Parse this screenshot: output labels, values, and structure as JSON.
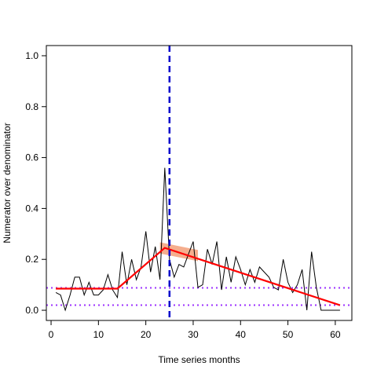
{
  "chart_data": {
    "type": "line",
    "title": "",
    "xlabel": "Time series months",
    "ylabel": "Numerator over denominator",
    "xlim": [
      -1,
      63.5
    ],
    "ylim": [
      -0.04,
      1.04
    ],
    "xticks": [
      0,
      10,
      20,
      30,
      40,
      50,
      60
    ],
    "yticks": [
      0.0,
      0.2,
      0.4,
      0.6,
      0.8,
      1.0
    ],
    "xtick_labels": [
      "0",
      "10",
      "20",
      "30",
      "40",
      "50",
      "60"
    ],
    "ytick_labels": [
      "0.0",
      "0.2",
      "0.4",
      "0.6",
      "0.8",
      "1.0"
    ],
    "grid": false,
    "legend": "none",
    "series": [
      {
        "kind": "observed",
        "color": "#000000",
        "x": [
          1,
          2,
          3,
          4,
          5,
          6,
          7,
          8,
          9,
          10,
          11,
          12,
          13,
          14,
          15,
          16,
          17,
          18,
          19,
          20,
          21,
          22,
          23,
          24,
          25,
          26,
          27,
          28,
          29,
          30,
          31,
          32,
          33,
          34,
          35,
          36,
          37,
          38,
          39,
          40,
          41,
          42,
          43,
          44,
          45,
          46,
          47,
          48,
          49,
          50,
          51,
          52,
          53,
          54,
          55,
          56,
          57,
          58,
          59,
          60,
          61
        ],
        "y": [
          0.07,
          0.06,
          0.0,
          0.06,
          0.13,
          0.13,
          0.06,
          0.11,
          0.06,
          0.06,
          0.08,
          0.14,
          0.08,
          0.05,
          0.23,
          0.1,
          0.2,
          0.12,
          0.17,
          0.31,
          0.15,
          0.25,
          0.12,
          0.56,
          0.2,
          0.13,
          0.18,
          0.17,
          0.22,
          0.27,
          0.09,
          0.1,
          0.24,
          0.18,
          0.27,
          0.08,
          0.21,
          0.11,
          0.21,
          0.16,
          0.1,
          0.16,
          0.11,
          0.17,
          0.15,
          0.13,
          0.09,
          0.08,
          0.2,
          0.11,
          0.07,
          0.1,
          0.16,
          0.0,
          0.23,
          0.09,
          0.0,
          0.0,
          0.0,
          0.0,
          0.0
        ]
      },
      {
        "kind": "segmented-fit",
        "color": "#ff0000",
        "x": [
          1,
          14,
          24,
          61
        ],
        "y": [
          0.085,
          0.085,
          0.245,
          0.02
        ]
      }
    ],
    "breakpoint": {
      "x": 25,
      "color": "#0000cc",
      "ci_band": {
        "x": [
          23,
          31
        ],
        "y_center": [
          0.245,
          0.215
        ],
        "half_width": 0.022,
        "color": "#f4a582"
      }
    },
    "reference_lines": [
      {
        "y": 0.088,
        "color": "#9b30ff"
      },
      {
        "y": 0.02,
        "color": "#9b30ff"
      }
    ]
  }
}
